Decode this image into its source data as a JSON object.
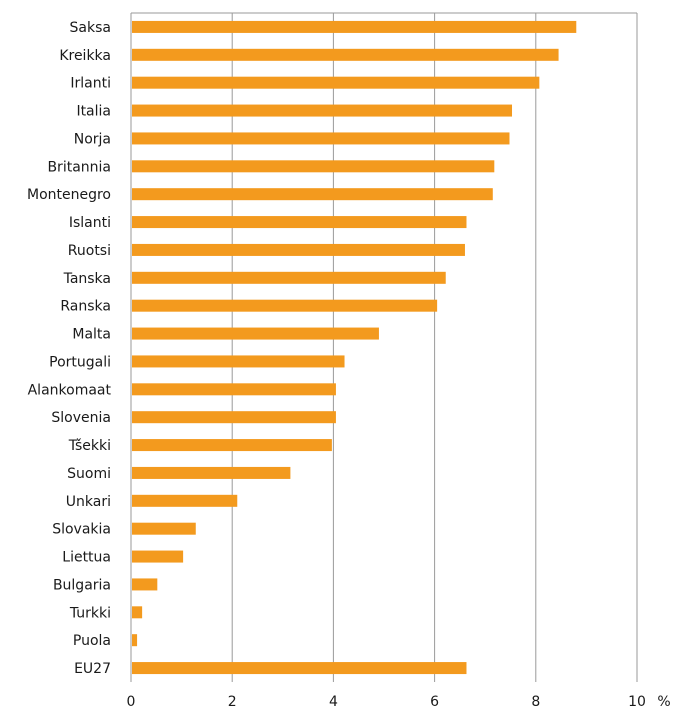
{
  "chart_data": {
    "type": "bar",
    "orientation": "horizontal",
    "categories": [
      "Saksa",
      "Kreikka",
      "Irlanti",
      "Italia",
      "Norja",
      "Britannia",
      "Montenegro",
      "Islanti",
      "Ruotsi",
      "Tanska",
      "Ranska",
      "Malta",
      "Portugali",
      "Alankomaat",
      "Slovenia",
      "Tšekki",
      "Suomi",
      "Unkari",
      "Slovakia",
      "Liettua",
      "Bulgaria",
      "Turkki",
      "Puola",
      "EU27"
    ],
    "values": [
      8.8,
      8.45,
      8.07,
      7.53,
      7.48,
      7.18,
      7.15,
      6.63,
      6.6,
      6.22,
      6.05,
      4.9,
      4.22,
      4.05,
      4.05,
      3.97,
      3.15,
      2.1,
      1.28,
      1.03,
      0.52,
      0.22,
      0.12,
      6.63
    ],
    "xlim": [
      0,
      10
    ],
    "xticks": [
      "0",
      "2",
      "4",
      "6",
      "8",
      "10"
    ],
    "unit": "%",
    "bar_color": "#F39A1E",
    "grid": true,
    "grid_color": "#9a9a9a",
    "frame_color": "#9a9a9a"
  }
}
